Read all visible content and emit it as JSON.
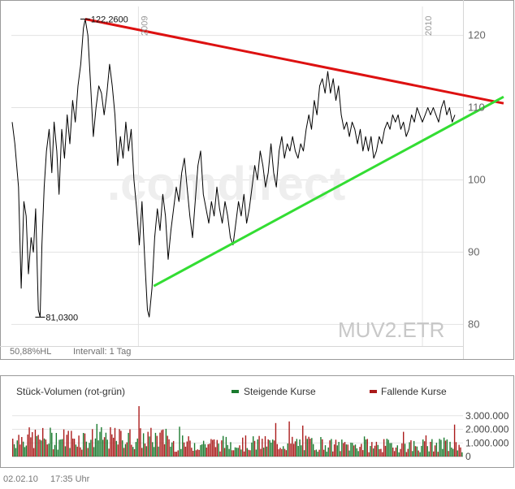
{
  "chart_data": [
    {
      "type": "line",
      "symbol": "MUV2.ETR",
      "watermark": ".comdirect",
      "info_left": "50,88%HL",
      "interval": "Intervall: 1 Tag",
      "ylim": [
        77,
        124
      ],
      "yticks": [
        80,
        90,
        100,
        110,
        120
      ],
      "year_labels": [
        {
          "label": "2009",
          "x": 0.28
        },
        {
          "label": "2010",
          "x": 0.91
        }
      ],
      "high_label": "122,2600",
      "low_label": "81,0300",
      "series": [
        {
          "values": [
            {
              "x": 0.0,
              "y": 108
            },
            {
              "x": 0.006,
              "y": 105
            },
            {
              "x": 0.014,
              "y": 99
            },
            {
              "x": 0.02,
              "y": 85
            },
            {
              "x": 0.026,
              "y": 97
            },
            {
              "x": 0.031,
              "y": 95
            },
            {
              "x": 0.036,
              "y": 87
            },
            {
              "x": 0.042,
              "y": 92
            },
            {
              "x": 0.047,
              "y": 90
            },
            {
              "x": 0.052,
              "y": 96
            },
            {
              "x": 0.058,
              "y": 82
            },
            {
              "x": 0.062,
              "y": 81
            },
            {
              "x": 0.066,
              "y": 91
            },
            {
              "x": 0.071,
              "y": 99
            },
            {
              "x": 0.076,
              "y": 104
            },
            {
              "x": 0.082,
              "y": 107
            },
            {
              "x": 0.088,
              "y": 101
            },
            {
              "x": 0.093,
              "y": 108
            },
            {
              "x": 0.099,
              "y": 104
            },
            {
              "x": 0.104,
              "y": 98
            },
            {
              "x": 0.11,
              "y": 107
            },
            {
              "x": 0.116,
              "y": 103
            },
            {
              "x": 0.122,
              "y": 109
            },
            {
              "x": 0.128,
              "y": 105
            },
            {
              "x": 0.134,
              "y": 111
            },
            {
              "x": 0.14,
              "y": 108
            },
            {
              "x": 0.146,
              "y": 113
            },
            {
              "x": 0.152,
              "y": 116
            },
            {
              "x": 0.158,
              "y": 121
            },
            {
              "x": 0.162,
              "y": 122.26
            },
            {
              "x": 0.168,
              "y": 120
            },
            {
              "x": 0.174,
              "y": 113
            },
            {
              "x": 0.18,
              "y": 106
            },
            {
              "x": 0.186,
              "y": 110
            },
            {
              "x": 0.192,
              "y": 113
            },
            {
              "x": 0.198,
              "y": 112
            },
            {
              "x": 0.204,
              "y": 109
            },
            {
              "x": 0.21,
              "y": 112
            },
            {
              "x": 0.216,
              "y": 116
            },
            {
              "x": 0.222,
              "y": 113
            },
            {
              "x": 0.228,
              "y": 109
            },
            {
              "x": 0.234,
              "y": 102
            },
            {
              "x": 0.24,
              "y": 106
            },
            {
              "x": 0.246,
              "y": 103
            },
            {
              "x": 0.252,
              "y": 108
            },
            {
              "x": 0.258,
              "y": 104
            },
            {
              "x": 0.264,
              "y": 107
            },
            {
              "x": 0.27,
              "y": 100
            },
            {
              "x": 0.276,
              "y": 96
            },
            {
              "x": 0.282,
              "y": 91
            },
            {
              "x": 0.288,
              "y": 97
            },
            {
              "x": 0.294,
              "y": 89
            },
            {
              "x": 0.3,
              "y": 82
            },
            {
              "x": 0.304,
              "y": 81.03
            },
            {
              "x": 0.31,
              "y": 85
            },
            {
              "x": 0.316,
              "y": 92
            },
            {
              "x": 0.322,
              "y": 96
            },
            {
              "x": 0.328,
              "y": 93
            },
            {
              "x": 0.334,
              "y": 98
            },
            {
              "x": 0.34,
              "y": 95
            },
            {
              "x": 0.346,
              "y": 89
            },
            {
              "x": 0.352,
              "y": 93
            },
            {
              "x": 0.358,
              "y": 96
            },
            {
              "x": 0.364,
              "y": 99
            },
            {
              "x": 0.37,
              "y": 97
            },
            {
              "x": 0.376,
              "y": 101
            },
            {
              "x": 0.382,
              "y": 103
            },
            {
              "x": 0.388,
              "y": 99
            },
            {
              "x": 0.394,
              "y": 95
            },
            {
              "x": 0.4,
              "y": 92
            },
            {
              "x": 0.406,
              "y": 97
            },
            {
              "x": 0.412,
              "y": 102
            },
            {
              "x": 0.418,
              "y": 104
            },
            {
              "x": 0.424,
              "y": 98
            },
            {
              "x": 0.43,
              "y": 96
            },
            {
              "x": 0.436,
              "y": 94
            },
            {
              "x": 0.442,
              "y": 97
            },
            {
              "x": 0.448,
              "y": 95
            },
            {
              "x": 0.454,
              "y": 99
            },
            {
              "x": 0.46,
              "y": 96
            },
            {
              "x": 0.466,
              "y": 94
            },
            {
              "x": 0.472,
              "y": 97
            },
            {
              "x": 0.478,
              "y": 95
            },
            {
              "x": 0.484,
              "y": 92
            },
            {
              "x": 0.49,
              "y": 91
            },
            {
              "x": 0.496,
              "y": 94
            },
            {
              "x": 0.502,
              "y": 97
            },
            {
              "x": 0.508,
              "y": 95
            },
            {
              "x": 0.514,
              "y": 98
            },
            {
              "x": 0.52,
              "y": 94
            },
            {
              "x": 0.526,
              "y": 96
            },
            {
              "x": 0.532,
              "y": 99
            },
            {
              "x": 0.538,
              "y": 102
            },
            {
              "x": 0.544,
              "y": 100
            },
            {
              "x": 0.55,
              "y": 104
            },
            {
              "x": 0.556,
              "y": 102
            },
            {
              "x": 0.562,
              "y": 99
            },
            {
              "x": 0.568,
              "y": 101
            },
            {
              "x": 0.574,
              "y": 105
            },
            {
              "x": 0.58,
              "y": 101
            },
            {
              "x": 0.586,
              "y": 99
            },
            {
              "x": 0.592,
              "y": 104
            },
            {
              "x": 0.598,
              "y": 106
            },
            {
              "x": 0.604,
              "y": 103
            },
            {
              "x": 0.61,
              "y": 105
            },
            {
              "x": 0.616,
              "y": 104
            },
            {
              "x": 0.622,
              "y": 106
            },
            {
              "x": 0.628,
              "y": 104
            },
            {
              "x": 0.634,
              "y": 103
            },
            {
              "x": 0.64,
              "y": 105
            },
            {
              "x": 0.646,
              "y": 104
            },
            {
              "x": 0.652,
              "y": 107
            },
            {
              "x": 0.658,
              "y": 109
            },
            {
              "x": 0.664,
              "y": 107
            },
            {
              "x": 0.67,
              "y": 111
            },
            {
              "x": 0.676,
              "y": 109
            },
            {
              "x": 0.682,
              "y": 113
            },
            {
              "x": 0.688,
              "y": 114
            },
            {
              "x": 0.694,
              "y": 112
            },
            {
              "x": 0.7,
              "y": 115
            },
            {
              "x": 0.706,
              "y": 112
            },
            {
              "x": 0.712,
              "y": 114
            },
            {
              "x": 0.718,
              "y": 111
            },
            {
              "x": 0.724,
              "y": 113
            },
            {
              "x": 0.73,
              "y": 109
            },
            {
              "x": 0.736,
              "y": 107
            },
            {
              "x": 0.742,
              "y": 108
            },
            {
              "x": 0.748,
              "y": 106
            },
            {
              "x": 0.754,
              "y": 108
            },
            {
              "x": 0.76,
              "y": 107
            },
            {
              "x": 0.766,
              "y": 105
            },
            {
              "x": 0.772,
              "y": 107
            },
            {
              "x": 0.778,
              "y": 104
            },
            {
              "x": 0.784,
              "y": 106
            },
            {
              "x": 0.79,
              "y": 104
            },
            {
              "x": 0.796,
              "y": 106
            },
            {
              "x": 0.802,
              "y": 103
            },
            {
              "x": 0.808,
              "y": 104
            },
            {
              "x": 0.814,
              "y": 106
            },
            {
              "x": 0.82,
              "y": 105
            },
            {
              "x": 0.826,
              "y": 107
            },
            {
              "x": 0.832,
              "y": 108
            },
            {
              "x": 0.838,
              "y": 107
            },
            {
              "x": 0.844,
              "y": 109
            },
            {
              "x": 0.85,
              "y": 108
            },
            {
              "x": 0.856,
              "y": 109
            },
            {
              "x": 0.862,
              "y": 107
            },
            {
              "x": 0.868,
              "y": 108
            },
            {
              "x": 0.874,
              "y": 106
            },
            {
              "x": 0.88,
              "y": 107
            },
            {
              "x": 0.886,
              "y": 109
            },
            {
              "x": 0.892,
              "y": 108
            },
            {
              "x": 0.898,
              "y": 110
            },
            {
              "x": 0.904,
              "y": 109
            },
            {
              "x": 0.91,
              "y": 108
            },
            {
              "x": 0.916,
              "y": 109
            },
            {
              "x": 0.922,
              "y": 110
            },
            {
              "x": 0.928,
              "y": 109
            },
            {
              "x": 0.934,
              "y": 110
            },
            {
              "x": 0.94,
              "y": 109
            },
            {
              "x": 0.946,
              "y": 108
            },
            {
              "x": 0.952,
              "y": 110
            },
            {
              "x": 0.958,
              "y": 111
            },
            {
              "x": 0.964,
              "y": 109
            },
            {
              "x": 0.97,
              "y": 110
            },
            {
              "x": 0.976,
              "y": 108
            },
            {
              "x": 0.982,
              "y": 109
            }
          ],
          "color": "#000000"
        }
      ],
      "trendlines": [
        {
          "color": "#dd1111",
          "from": {
            "x": 0.162,
            "y": 122.26
          },
          "to": {
            "x": 1.09,
            "y": 110.6
          }
        },
        {
          "color": "#33dd33",
          "from": {
            "x": 0.314,
            "y": 85.3
          },
          "to": {
            "x": 1.09,
            "y": 111.5
          }
        }
      ]
    },
    {
      "type": "bar",
      "title": "Stück-Volumen (rot-grün)",
      "legend": [
        {
          "label": "Steigende Kurse",
          "color": "#1a7a2e"
        },
        {
          "label": "Fallende Kurse",
          "color": "#aa1a1a"
        }
      ],
      "ylim": [
        0,
        4000000
      ],
      "yticks": [
        {
          "value": 3000000,
          "label": "3.000.000"
        },
        {
          "value": 2000000,
          "label": "2.000.000"
        },
        {
          "value": 1000000,
          "label": "1.000.000"
        },
        {
          "value": 0,
          "label": "0"
        }
      ],
      "count": 300,
      "up_color": "#1a7a2e",
      "down_color": "#aa1a1a"
    }
  ],
  "footer": {
    "date": "02.02.10",
    "time": "17:35 Uhr"
  }
}
